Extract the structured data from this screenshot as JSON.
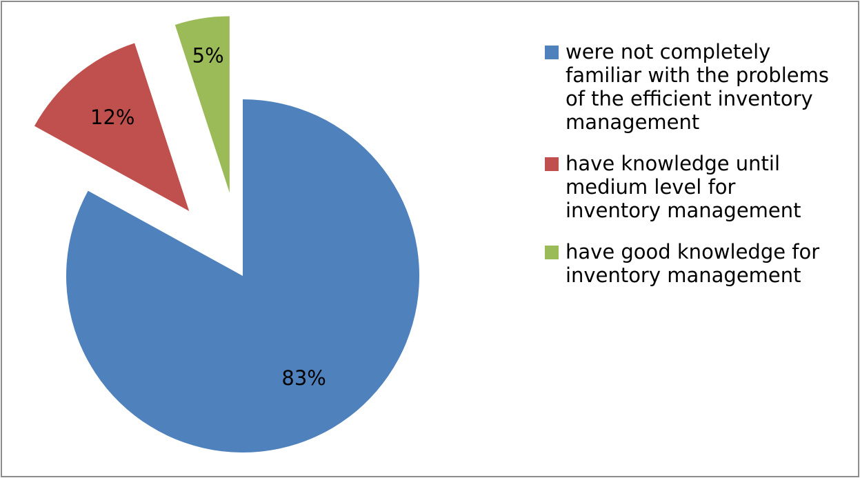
{
  "chart_data": {
    "type": "pie",
    "categories": [
      "were not completely familiar with the problems of the efficient inventory management",
      "have knowledge until medium level for inventory management",
      "have good knowledge for inventory management"
    ],
    "values": [
      83,
      12,
      5
    ],
    "value_labels": [
      "83%",
      "12%",
      "5%"
    ],
    "colors": [
      "#4f81bd",
      "#c0504d",
      "#9bbb59"
    ],
    "exploded": [
      false,
      true,
      true
    ],
    "legend": "right"
  }
}
